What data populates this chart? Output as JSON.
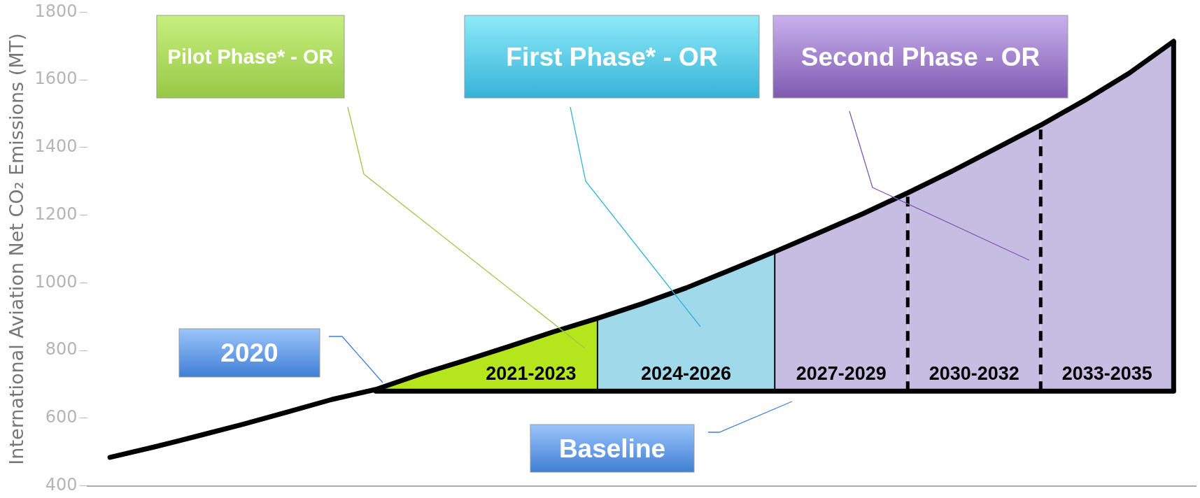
{
  "chart_data": {
    "type": "line",
    "ylabel": "International Aviation Net CO₂ Emissions (MT)",
    "categories": [
      null,
      null,
      null,
      null,
      null,
      null,
      null,
      null,
      null,
      null,
      null,
      null,
      null,
      null,
      null,
      null,
      null,
      null,
      null,
      null,
      null,
      null,
      null,
      null,
      null
    ],
    "ylim": [
      400,
      1800
    ],
    "yticks": [
      400,
      600,
      800,
      1000,
      1200,
      1400,
      1600,
      1800
    ],
    "grid": false,
    "legend": false,
    "marker": "none",
    "series": [
      {
        "type": "area",
        "name": "2021-2023",
        "color": "#b5e61d",
        "values": [
          null,
          null,
          null,
          null,
          null,
          null,
          685,
          730,
          770,
          812,
          855,
          895,
          null,
          null,
          null,
          null,
          null,
          null,
          null,
          null,
          null,
          null,
          null,
          null,
          null
        ]
      },
      {
        "type": "area",
        "name": "2024-2026",
        "color": "#9fd9ea",
        "values": [
          null,
          null,
          null,
          null,
          null,
          null,
          null,
          null,
          null,
          null,
          null,
          895,
          938,
          985,
          1038,
          1092,
          null,
          null,
          null,
          null,
          null,
          null,
          null,
          null,
          null
        ]
      },
      {
        "type": "area",
        "name": "2027-2029",
        "color": "#c5bde2",
        "values": [
          null,
          null,
          null,
          null,
          null,
          null,
          null,
          null,
          null,
          null,
          null,
          null,
          null,
          null,
          null,
          1092,
          1148,
          1205,
          1266,
          null,
          null,
          null,
          null,
          null,
          null
        ]
      },
      {
        "type": "area",
        "name": "2030-2032",
        "color": "#c5bde2",
        "line_style": "dashed",
        "values": [
          null,
          null,
          null,
          null,
          null,
          null,
          null,
          null,
          null,
          null,
          null,
          null,
          null,
          null,
          null,
          null,
          null,
          null,
          1266,
          1330,
          1398,
          1466,
          null,
          null,
          null
        ]
      },
      {
        "type": "area",
        "name": "2033-2035",
        "color": "#c5bde2",
        "line_style": "dashed",
        "values": [
          null,
          null,
          null,
          null,
          null,
          null,
          null,
          null,
          null,
          null,
          null,
          null,
          null,
          null,
          null,
          null,
          null,
          null,
          null,
          null,
          null,
          1466,
          1540,
          1620,
          1714
        ]
      },
      {
        "color": "#000000",
        "values": [
          484,
          515,
          548,
          582,
          618,
          655,
          685,
          730,
          770,
          812,
          855,
          895,
          938,
          985,
          1038,
          1092,
          1148,
          1205,
          1266,
          1330,
          1398,
          1466,
          1540,
          1620,
          1714
        ]
      }
    ],
    "ref_lines": [
      {
        "axis": "y",
        "value": 680,
        "label": "Baseline",
        "color": "#000000"
      }
    ],
    "annotations": [
      "Pilot Phase* - OR",
      "First Phase* - OR",
      "Second Phase - OR",
      "2020"
    ]
  }
}
